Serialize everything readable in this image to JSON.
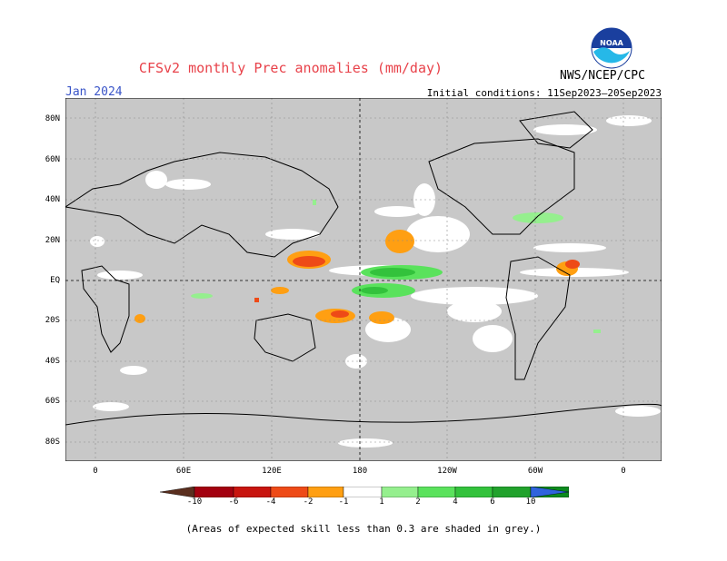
{
  "header": {
    "title": "CFSv2 monthly Prec anomalies (mm/day)",
    "month": "Jan 2024",
    "initial_conditions": "Initial conditions: 11Sep2023–20Sep2023",
    "agency": "NWS/NCEP/CPC",
    "logo_text": "NOAA"
  },
  "map": {
    "lat_labels": [
      "80N",
      "60N",
      "40N",
      "20N",
      "EQ",
      "20S",
      "40S",
      "60S",
      "80S"
    ],
    "lon_labels": [
      "0",
      "60E",
      "120E",
      "180",
      "120W",
      "60W",
      "0"
    ]
  },
  "colorbar": {
    "ticks": [
      "-10",
      "-6",
      "-4",
      "-2",
      "-1",
      "1",
      "2",
      "4",
      "6",
      "10"
    ],
    "colors": [
      "#5a2e1e",
      "#a3000f",
      "#c8150f",
      "#ee4a17",
      "#ff9f12",
      "#ffffff",
      "#95ef8e",
      "#5ae25c",
      "#33c23c",
      "#21a22c",
      "#0c8a1e",
      "#2f63dd"
    ]
  },
  "footnote": "(Areas of expected skill less than 0.3 are shaded in grey.)"
}
